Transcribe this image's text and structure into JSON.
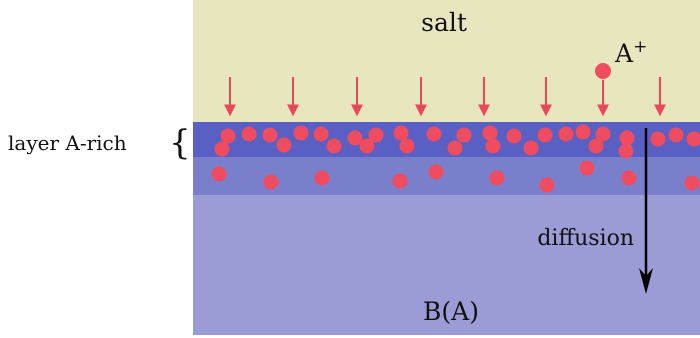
{
  "labels": {
    "salt": "salt",
    "ion": "A",
    "ion_charge": "+",
    "layer": "layer A-rich",
    "layer_brace": "{",
    "diffusion": "diffusion",
    "bulk": "B(A)"
  },
  "colors": {
    "salt": "#e8e6bf",
    "layer_dense": "#5a5fc4",
    "layer_mid": "#7a7fcc",
    "bulk": "#9b9bd6",
    "particle": "#ef4d5f",
    "arrow_in": "#e8485a",
    "arrow_diffusion": "#000000"
  }
}
